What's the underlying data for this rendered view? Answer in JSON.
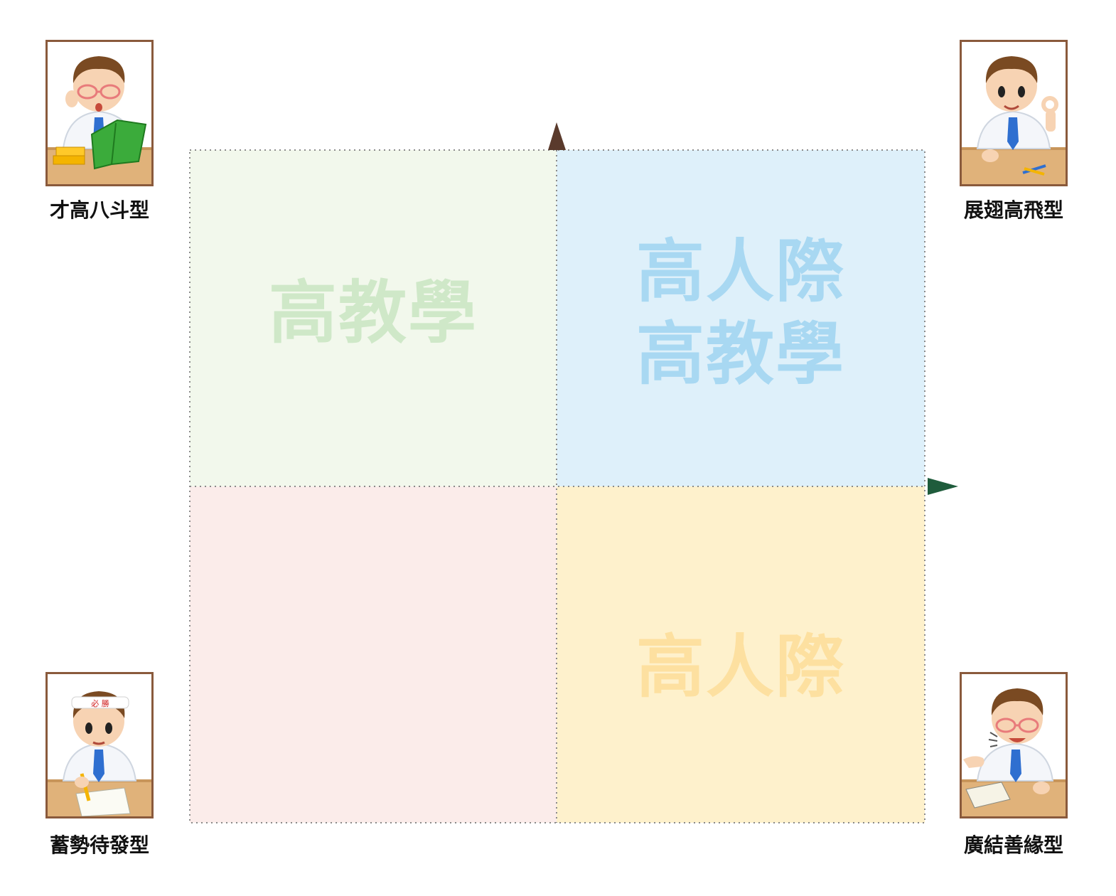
{
  "quadrants": {
    "top_left": {
      "lines": [
        "高教學"
      ]
    },
    "top_right": {
      "lines": [
        "高人際",
        "高教學"
      ]
    },
    "bottom_left": {
      "lines": []
    },
    "bottom_right": {
      "lines": [
        "高人際"
      ]
    }
  },
  "personas": {
    "top_left": {
      "label": "才高八斗型"
    },
    "top_right": {
      "label": "展翅高飛型"
    },
    "bottom_left": {
      "label": "蓄勢待發型",
      "headband_text": "必 勝"
    },
    "bottom_right": {
      "label": "廣結善緣型"
    }
  },
  "colors": {
    "top_left_fill": "#f2f8ec",
    "top_right_fill": "#def0fa",
    "bottom_left_fill": "#fbecea",
    "bottom_right_fill": "#fef1cc",
    "vertical_arrow": "#5a3a2c",
    "horizontal_arrow": "#1f5c3c"
  }
}
